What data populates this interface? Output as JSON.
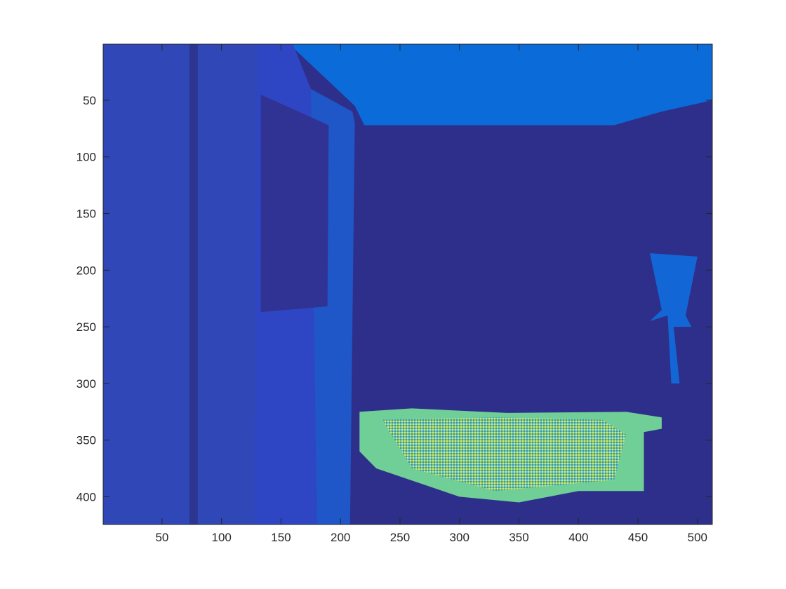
{
  "chart_data": {
    "type": "heatmap",
    "title": "",
    "xlabel": "",
    "ylabel": "",
    "xlim": [
      0.5,
      512.5
    ],
    "ylim": [
      0.5,
      424.5
    ],
    "y_direction": "reverse",
    "grid": false,
    "colormap": "parula",
    "x_ticks": [
      50,
      100,
      150,
      200,
      250,
      300,
      350,
      400,
      450,
      500
    ],
    "y_ticks": [
      50,
      100,
      150,
      200,
      250,
      300,
      350,
      400
    ],
    "x_tick_labels": [
      "50",
      "100",
      "150",
      "200",
      "250",
      "300",
      "350",
      "400",
      "450",
      "500"
    ],
    "y_tick_labels": [
      "50",
      "100",
      "150",
      "200",
      "250",
      "300",
      "350",
      "400"
    ],
    "background_color": "#2e2f8a",
    "regions": [
      {
        "name": "ceiling",
        "color": "#0b6bd8",
        "polygon": [
          [
            157,
            0.5
          ],
          [
            512.5,
            0.5
          ],
          [
            512.5,
            50
          ],
          [
            470,
            60
          ],
          [
            430,
            72
          ],
          [
            220,
            72
          ],
          [
            212,
            55
          ]
        ]
      },
      {
        "name": "left-wall",
        "color": "#3047b8",
        "polygon": [
          [
            0.5,
            0.5
          ],
          [
            130,
            0.5
          ],
          [
            130,
            424.5
          ],
          [
            0.5,
            424.5
          ]
        ]
      },
      {
        "name": "dark-stripe",
        "color": "#2c3690",
        "polygon": [
          [
            73,
            0.5
          ],
          [
            80,
            0.5
          ],
          [
            80,
            424.5
          ],
          [
            73,
            424.5
          ]
        ]
      },
      {
        "name": "door-frame",
        "color": "#2f46c4",
        "polygon": [
          [
            130,
            0.5
          ],
          [
            160,
            0.5
          ],
          [
            175,
            40
          ],
          [
            180,
            424.5
          ],
          [
            128,
            424.5
          ]
        ]
      },
      {
        "name": "door-jamb",
        "color": "#1f56c8",
        "polygon": [
          [
            175,
            40
          ],
          [
            210,
            60
          ],
          [
            212,
            70
          ],
          [
            208,
            424.5
          ],
          [
            180,
            424.5
          ]
        ]
      },
      {
        "name": "window-panel",
        "color": "#303393",
        "polygon": [
          [
            133,
            45
          ],
          [
            190,
            72
          ],
          [
            189,
            232
          ],
          [
            133,
            237
          ]
        ]
      },
      {
        "name": "floor-highlight",
        "color": "#6fcf97",
        "polygon": [
          [
            216,
            325
          ],
          [
            260,
            322
          ],
          [
            340,
            326
          ],
          [
            440,
            325
          ],
          [
            470,
            330
          ],
          [
            470,
            340
          ],
          [
            455,
            343
          ],
          [
            455,
            395
          ],
          [
            400,
            395
          ],
          [
            350,
            405
          ],
          [
            300,
            400
          ],
          [
            230,
            375
          ],
          [
            216,
            360
          ]
        ]
      },
      {
        "name": "floor-dither",
        "color": "#c7d93b",
        "polygon": [
          [
            235,
            332
          ],
          [
            330,
            330
          ],
          [
            420,
            332
          ],
          [
            440,
            345
          ],
          [
            430,
            385
          ],
          [
            330,
            395
          ],
          [
            260,
            375
          ]
        ]
      },
      {
        "name": "right-fixture",
        "color": "#1366d6",
        "polygon": [
          [
            460,
            185
          ],
          [
            500,
            188
          ],
          [
            490,
            240
          ],
          [
            495,
            250
          ],
          [
            480,
            250
          ],
          [
            485,
            300
          ],
          [
            478,
            300
          ],
          [
            475,
            240
          ],
          [
            460,
            245
          ],
          [
            470,
            235
          ]
        ]
      }
    ]
  }
}
